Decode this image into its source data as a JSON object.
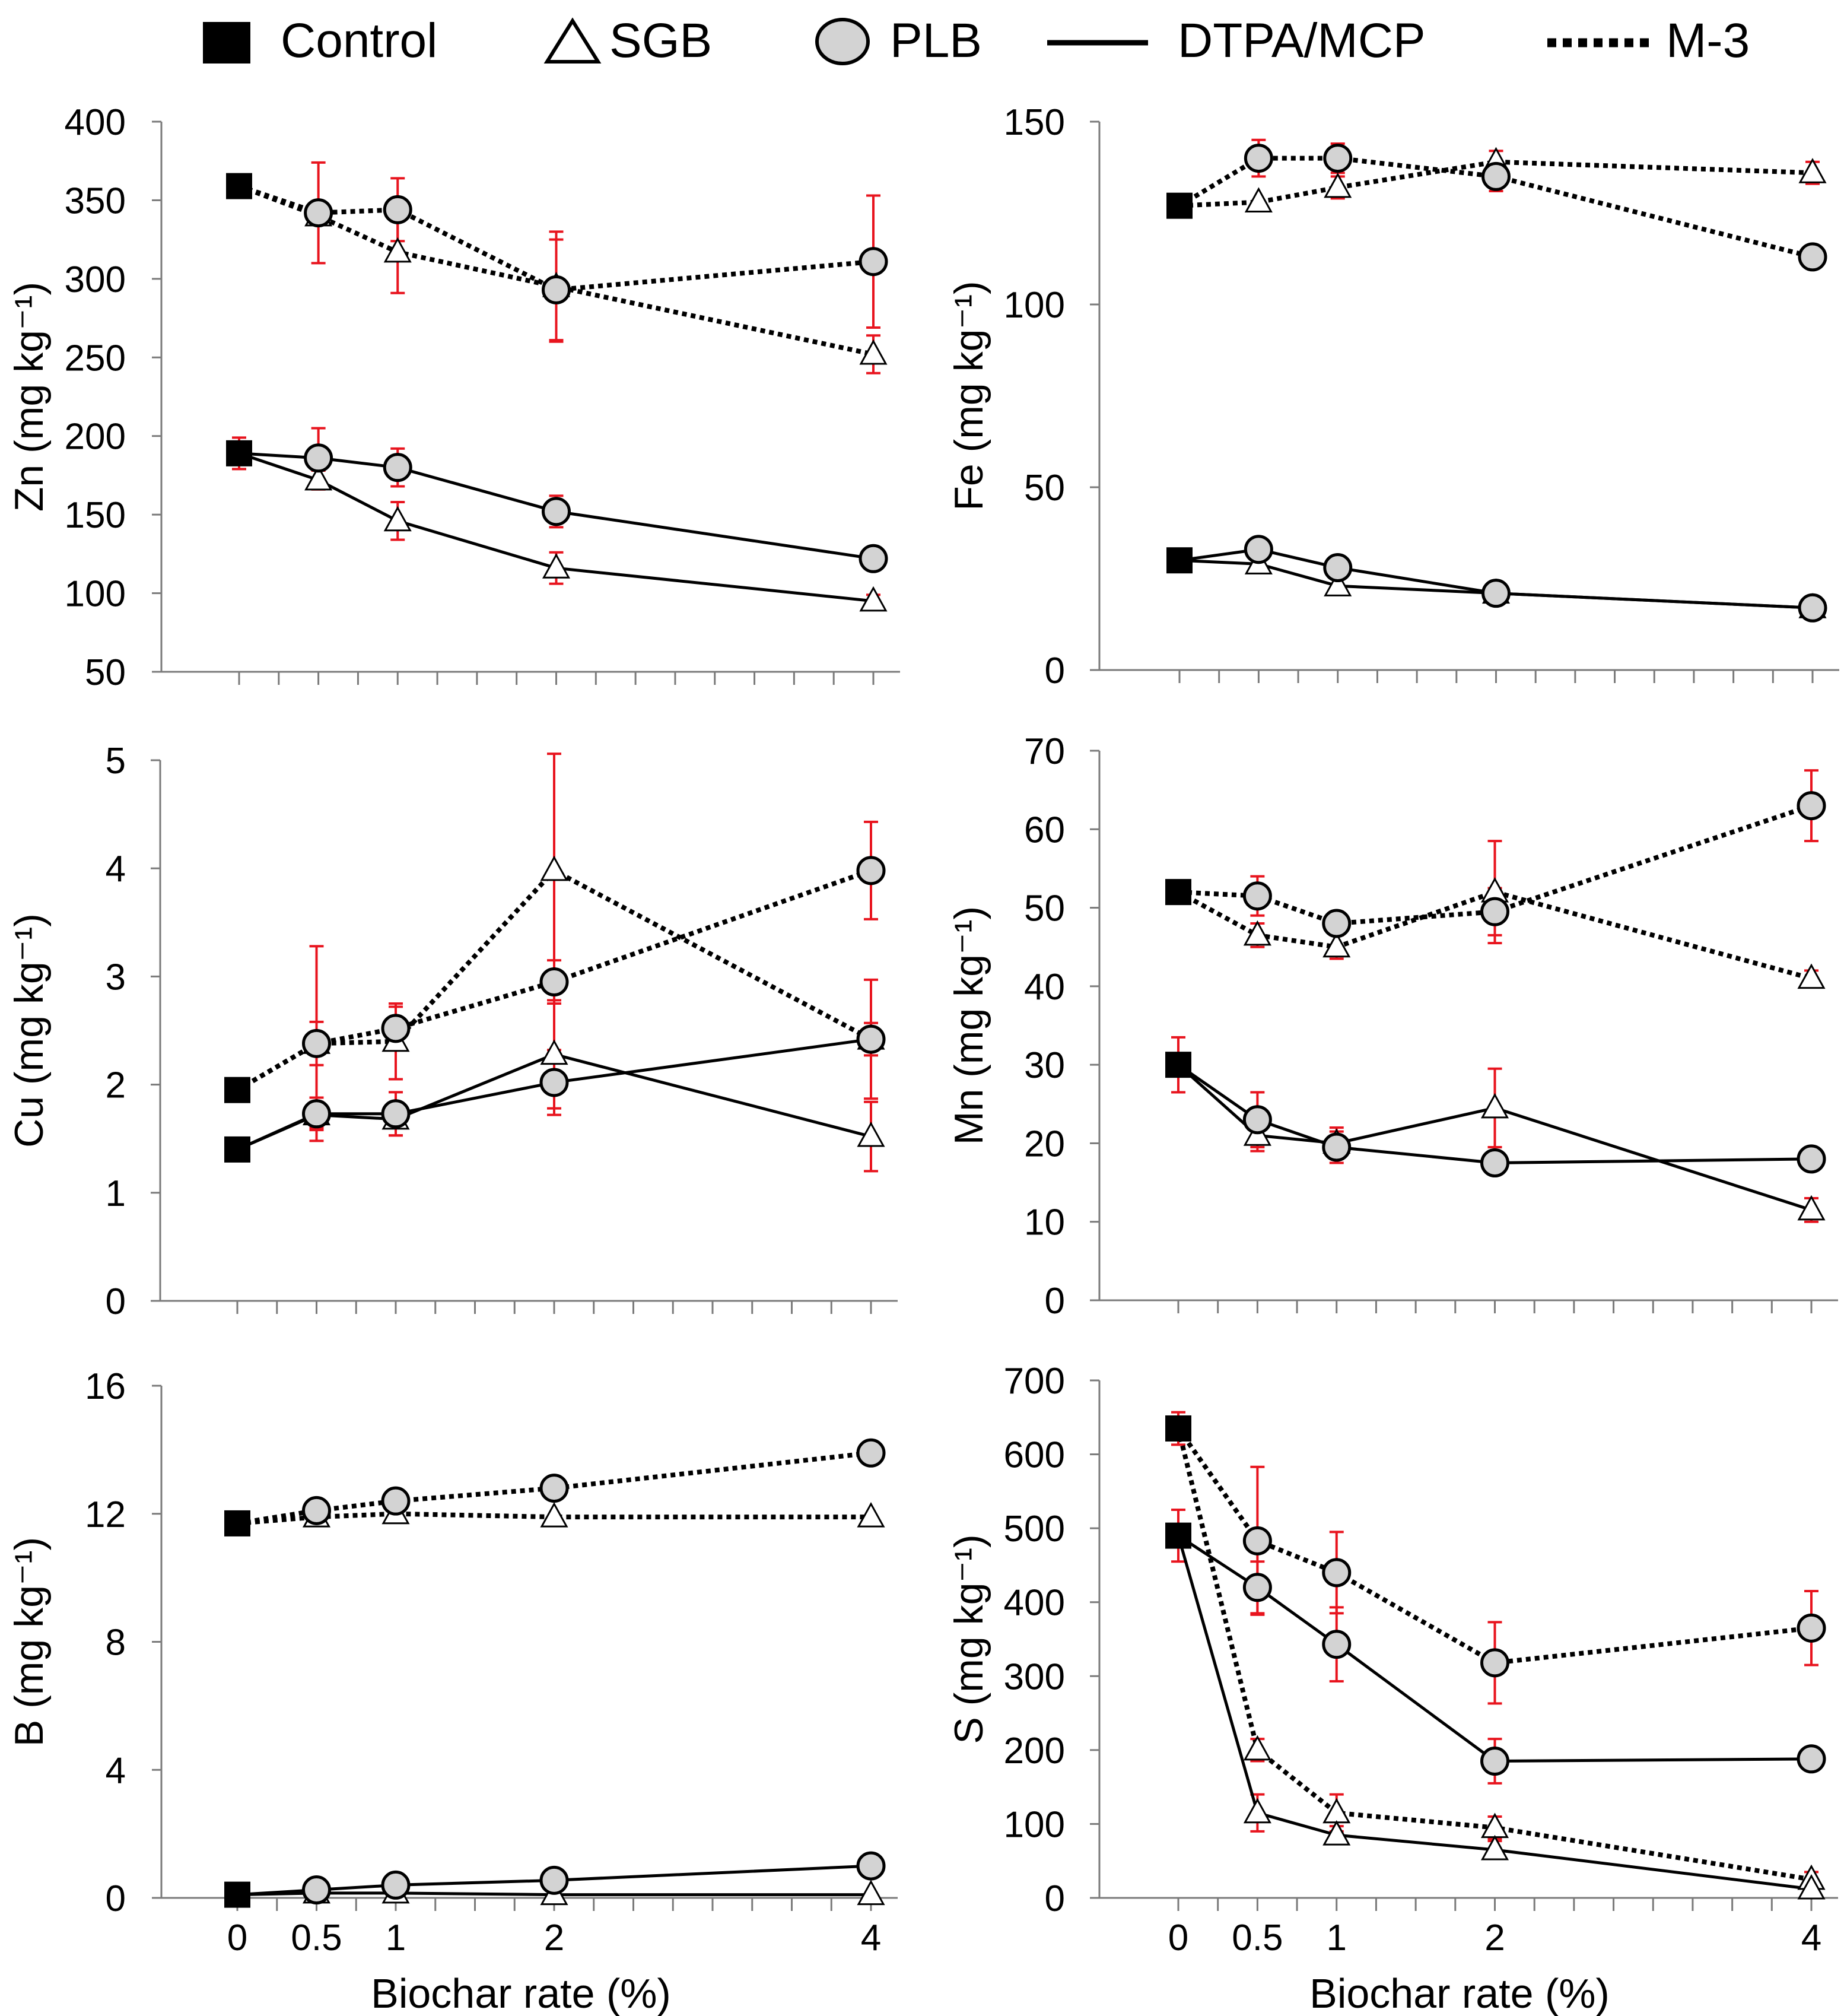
{
  "legend": {
    "control": "Control",
    "sgb": "SGB",
    "plb": "PLB",
    "dtpa": "DTPA/MCP",
    "m3": "M-3"
  },
  "colors": {
    "error_bar": "#e8141e",
    "plb_fill": "#d3d3d3",
    "control_fill": "#000000",
    "line": "#000000"
  },
  "x_title": "Biochar rate (%)",
  "chart_data": [
    {
      "id": "zn",
      "type": "line",
      "ylabel": "Zn (mg kg⁻¹)",
      "element": "Zn",
      "ylim": [
        50,
        400
      ],
      "yticks": [
        50,
        100,
        150,
        200,
        250,
        300,
        350,
        400
      ],
      "x": [
        0,
        0.5,
        1,
        2,
        4
      ],
      "xticklabels": [
        "",
        "",
        "",
        "",
        ""
      ],
      "series": [
        {
          "name": "SGB M-3",
          "biochar": "SGB",
          "method": "M-3",
          "values": [
            359,
            340,
            317,
            295,
            252
          ],
          "errors": [
            null,
            null,
            26,
            35,
            12
          ]
        },
        {
          "name": "PLB M-3",
          "biochar": "PLB",
          "method": "M-3",
          "values": [
            359,
            342,
            344,
            293,
            311
          ],
          "errors": [
            null,
            32,
            20,
            32,
            42
          ]
        },
        {
          "name": "SGB DTPA/MCP",
          "biochar": "SGB",
          "method": "DTPA/MCP",
          "values": [
            189,
            172,
            146,
            116,
            95
          ],
          "errors": [
            null,
            6,
            12,
            10,
            4
          ]
        },
        {
          "name": "PLB DTPA/MCP",
          "biochar": "PLB",
          "method": "DTPA/MCP",
          "values": [
            189,
            186,
            180,
            152,
            122
          ],
          "errors": [
            10,
            19,
            12,
            10,
            7
          ]
        }
      ]
    },
    {
      "id": "fe",
      "type": "line",
      "ylabel": "Fe (mg kg⁻¹)",
      "element": "Fe",
      "ylim": [
        0,
        150
      ],
      "yticks": [
        0,
        50,
        100,
        150
      ],
      "x": [
        0,
        0.5,
        1,
        2,
        4
      ],
      "xticklabels": [
        "",
        "",
        "",
        "",
        ""
      ],
      "series": [
        {
          "name": "SGB M-3",
          "biochar": "SGB",
          "method": "M-3",
          "values": [
            127,
            128,
            132,
            139,
            136
          ],
          "errors": [
            null,
            null,
            3,
            3,
            3
          ]
        },
        {
          "name": "PLB M-3",
          "biochar": "PLB",
          "method": "M-3",
          "values": [
            127,
            140,
            140,
            135,
            113
          ],
          "errors": [
            null,
            5,
            4,
            4,
            2
          ]
        },
        {
          "name": "SGB DTPA/MCP",
          "biochar": "SGB",
          "method": "DTPA/MCP",
          "values": [
            30,
            29,
            23,
            21,
            17
          ],
          "errors": [
            null,
            1,
            2,
            2,
            1
          ]
        },
        {
          "name": "PLB DTPA/MCP",
          "biochar": "PLB",
          "method": "DTPA/MCP",
          "values": [
            30,
            33,
            28,
            21,
            17
          ],
          "errors": [
            null,
            2,
            2,
            2,
            1
          ]
        }
      ]
    },
    {
      "id": "cu",
      "type": "line",
      "ylabel": "Cu (mg kg⁻¹)",
      "element": "Cu",
      "ylim": [
        0,
        5
      ],
      "yticks": [
        0,
        1,
        2,
        3,
        4,
        5
      ],
      "x": [
        0,
        0.5,
        1,
        2,
        4
      ],
      "xticklabels": [
        "",
        "",
        "",
        "",
        ""
      ],
      "series": [
        {
          "name": "SGB M-3",
          "biochar": "SGB",
          "method": "M-3",
          "values": [
            1.95,
            2.38,
            2.4,
            3.98,
            2.42
          ],
          "errors": [
            null,
            0.9,
            0.35,
            1.08,
            0.55
          ]
        },
        {
          "name": "PLB M-3",
          "biochar": "PLB",
          "method": "M-3",
          "values": [
            1.95,
            2.38,
            2.52,
            2.95,
            3.98
          ],
          "errors": [
            null,
            0.2,
            0.2,
            0.2,
            0.45
          ]
        },
        {
          "name": "SGB DTPA/MCP",
          "biochar": "SGB",
          "method": "DTPA/MCP",
          "values": [
            1.4,
            1.72,
            1.68,
            2.28,
            1.52
          ],
          "errors": [
            null,
            0.12,
            0.15,
            0.5,
            0.32
          ]
        },
        {
          "name": "PLB DTPA/MCP",
          "biochar": "PLB",
          "method": "DTPA/MCP",
          "values": [
            1.4,
            1.73,
            1.73,
            2.02,
            2.42
          ],
          "errors": [
            null,
            0.15,
            0.2,
            0.3,
            0.15
          ]
        }
      ]
    },
    {
      "id": "mn",
      "type": "line",
      "ylabel": "Mn (mg kg⁻¹)",
      "element": "Mn",
      "ylim": [
        0,
        70
      ],
      "yticks": [
        0,
        10,
        20,
        30,
        40,
        50,
        60,
        70
      ],
      "x": [
        0,
        0.5,
        1,
        2,
        4
      ],
      "xticklabels": [
        "",
        "",
        "",
        "",
        ""
      ],
      "series": [
        {
          "name": "SGB M-3",
          "biochar": "SGB",
          "method": "M-3",
          "values": [
            52,
            46.5,
            45,
            52,
            41
          ],
          "errors": [
            null,
            1.5,
            1.5,
            6.5,
            1
          ]
        },
        {
          "name": "PLB M-3",
          "biochar": "PLB",
          "method": "M-3",
          "values": [
            52,
            51.5,
            48,
            49.5,
            63
          ],
          "errors": [
            null,
            2.5,
            1.5,
            3,
            4.5
          ]
        },
        {
          "name": "SGB DTPA/MCP",
          "biochar": "SGB",
          "method": "DTPA/MCP",
          "values": [
            30,
            21,
            20,
            24.5,
            11.5
          ],
          "errors": [
            3.5,
            2,
            2,
            5,
            1.5
          ]
        },
        {
          "name": "PLB DTPA/MCP",
          "biochar": "PLB",
          "method": "DTPA/MCP",
          "values": [
            30,
            23,
            19.5,
            17.5,
            18
          ],
          "errors": [
            null,
            3.5,
            2,
            1,
            1
          ]
        }
      ]
    },
    {
      "id": "b",
      "type": "line",
      "ylabel": "B (mg kg⁻¹)",
      "element": "B",
      "ylim": [
        0,
        16
      ],
      "yticks": [
        0,
        4,
        8,
        12,
        16
      ],
      "x": [
        0,
        0.5,
        1,
        2,
        4
      ],
      "xticklabels": [
        "0",
        "0.5",
        "1",
        "2",
        "4"
      ],
      "series": [
        {
          "name": "SGB M-3",
          "biochar": "SGB",
          "method": "M-3",
          "values": [
            11.7,
            11.9,
            12,
            11.9,
            11.9
          ],
          "errors": [
            null,
            null,
            null,
            null,
            null
          ]
        },
        {
          "name": "PLB M-3",
          "biochar": "PLB",
          "method": "M-3",
          "values": [
            11.7,
            12.1,
            12.4,
            12.8,
            13.9
          ],
          "errors": [
            null,
            null,
            null,
            null,
            null
          ]
        },
        {
          "name": "SGB DTPA/MCP",
          "biochar": "SGB",
          "method": "DTPA/MCP",
          "values": [
            0.1,
            0.15,
            0.15,
            0.1,
            0.1
          ],
          "errors": [
            null,
            null,
            null,
            null,
            null
          ]
        },
        {
          "name": "PLB DTPA/MCP",
          "biochar": "PLB",
          "method": "DTPA/MCP",
          "values": [
            0.1,
            0.25,
            0.4,
            0.55,
            1.0
          ],
          "errors": [
            null,
            null,
            null,
            null,
            null
          ]
        }
      ]
    },
    {
      "id": "s",
      "type": "line",
      "ylabel": "S (mg kg⁻¹)",
      "element": "S",
      "ylim": [
        0,
        700
      ],
      "yticks": [
        0,
        100,
        200,
        300,
        400,
        500,
        600,
        700
      ],
      "x": [
        0,
        0.5,
        1,
        2,
        4
      ],
      "xticklabels": [
        "0",
        "0.5",
        "1",
        "2",
        "4"
      ],
      "series": [
        {
          "name": "SGB M-3",
          "biochar": "SGB",
          "method": "M-3",
          "values": [
            635,
            200,
            115,
            95,
            25
          ],
          "errors": [
            22,
            15,
            25,
            15,
            10
          ]
        },
        {
          "name": "PLB M-3",
          "biochar": "PLB",
          "method": "M-3",
          "values": [
            635,
            483,
            440,
            318,
            365
          ],
          "errors": [
            null,
            100,
            55,
            55,
            50
          ]
        },
        {
          "name": "SGB DTPA/MCP",
          "biochar": "SGB",
          "method": "DTPA/MCP",
          "values": [
            490,
            115,
            85,
            65,
            12
          ],
          "errors": [
            35,
            25,
            12,
            12,
            5
          ]
        },
        {
          "name": "PLB DTPA/MCP",
          "biochar": "PLB",
          "method": "DTPA/MCP",
          "values": [
            490,
            420,
            343,
            185,
            188
          ],
          "errors": [
            null,
            35,
            50,
            30,
            10
          ]
        }
      ]
    }
  ]
}
